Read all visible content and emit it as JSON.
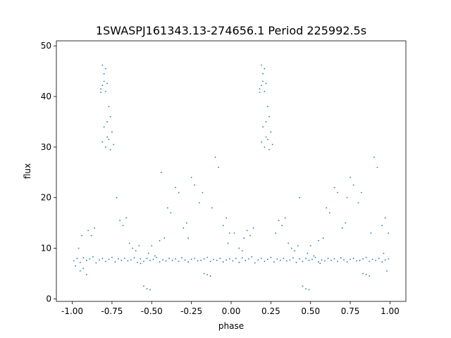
{
  "chart_data": {
    "type": "scatter",
    "title": "1SWASPJ161343.13-274656.1 Period 225992.5s",
    "xlabel": "phase",
    "ylabel": "flux",
    "xlim": [
      -1.1,
      1.1
    ],
    "ylim": [
      -0.5,
      51
    ],
    "xticks": [
      "-1.00",
      "-0.75",
      "-0.50",
      "-0.25",
      "0.00",
      "0.25",
      "0.50",
      "0.75",
      "1.00"
    ],
    "yticks": [
      "0",
      "10",
      "20",
      "30",
      "40",
      "50"
    ],
    "grid": false,
    "legend": "none",
    "marker_color": "#1f77b4",
    "series": [
      {
        "x": [
          -0.99,
          -0.97,
          -0.95,
          -0.93,
          -0.91,
          -0.89,
          -0.87,
          -0.85,
          -0.83,
          -0.81,
          -0.79,
          -0.77,
          -0.75,
          -0.73,
          -0.71,
          -0.69,
          -0.67,
          -0.65,
          -0.63,
          -0.61,
          -0.59,
          -0.57,
          -0.55,
          -0.53,
          -0.51,
          -0.49,
          -0.47,
          -0.45,
          -0.43,
          -0.41,
          -0.39,
          -0.37,
          -0.35,
          -0.33,
          -0.31,
          -0.29,
          -0.27,
          -0.25,
          -0.23,
          -0.21,
          -0.19,
          -0.17,
          -0.15,
          -0.13,
          -0.11,
          -0.09,
          -0.07,
          -0.05,
          -0.03,
          -0.01,
          0.01,
          0.03,
          0.05,
          0.07,
          0.09,
          0.11,
          0.13,
          0.15,
          0.17,
          0.19,
          0.21,
          0.23,
          0.25,
          0.27,
          0.29,
          0.31,
          0.33,
          0.35,
          0.37,
          0.39,
          0.41,
          0.43,
          0.45,
          0.47,
          0.49,
          0.51,
          0.53,
          0.55,
          0.57,
          0.59,
          0.61,
          0.63,
          0.65,
          0.67,
          0.69,
          0.71,
          0.73,
          0.75,
          0.77,
          0.79,
          0.81,
          0.83,
          0.85,
          0.87,
          0.89,
          0.91,
          0.93,
          0.95,
          0.97,
          0.99,
          -0.82,
          -0.81,
          -0.8,
          -0.79,
          -0.78,
          -0.8,
          -0.82,
          -0.79,
          -0.81,
          -0.77,
          -0.76,
          -0.75,
          -0.74,
          -0.77,
          -0.76,
          -0.78,
          -0.8,
          -0.79,
          -0.81,
          -0.78,
          0.18,
          0.19,
          0.2,
          0.21,
          0.22,
          0.2,
          0.18,
          0.21,
          0.19,
          0.23,
          0.24,
          0.25,
          0.26,
          0.23,
          0.24,
          0.22,
          0.2,
          0.21,
          0.19,
          0.22,
          -0.55,
          -0.53,
          -0.51,
          -0.17,
          -0.15,
          -0.13,
          0.45,
          0.47,
          0.49,
          0.83,
          0.85,
          0.87,
          -0.52,
          -0.5,
          -0.48,
          -0.45,
          -0.42,
          -0.6,
          -0.58,
          -0.3,
          -0.28,
          -0.05,
          -0.03,
          -0.01,
          0.48,
          0.5,
          0.52,
          0.55,
          0.58,
          0.4,
          0.42,
          0.7,
          0.72,
          0.95,
          0.97,
          0.99,
          -0.9,
          -0.88,
          -0.86,
          -0.7,
          -0.68,
          -0.66,
          -0.4,
          -0.38,
          -0.2,
          -0.18,
          -0.1,
          -0.08,
          0.1,
          0.12,
          0.14,
          0.3,
          0.32,
          0.34,
          0.6,
          0.62,
          0.8,
          0.82,
          0.9,
          0.92,
          -0.95,
          -0.93,
          -0.91,
          -0.64,
          -0.62,
          -0.35,
          -0.33,
          -0.25,
          -0.23,
          -0.02,
          0.05,
          0.07,
          0.36,
          0.38,
          0.65,
          0.67,
          0.75,
          0.77,
          0.98,
          -0.98,
          -0.96,
          -0.94,
          -0.72,
          -0.57,
          -0.44,
          -0.27,
          -0.12,
          0.02,
          0.08,
          0.28,
          0.43,
          0.56,
          0.73,
          0.88,
          0.96
        ],
        "y": [
          7.5,
          8,
          7.2,
          8.1,
          7.6,
          7.9,
          8.3,
          7.1,
          7.7,
          8.0,
          7.4,
          7.8,
          8.2,
          7.3,
          7.9,
          7.6,
          8.0,
          7.5,
          7.7,
          8.1,
          7.2,
          7.9,
          7.4,
          8.0,
          7.6,
          7.8,
          8.2,
          7.3,
          7.7,
          7.5,
          8.0,
          7.6,
          7.9,
          7.4,
          8.1,
          7.7,
          7.3,
          7.8,
          8.0,
          7.5,
          7.6,
          7.9,
          8.2,
          7.4,
          7.8,
          7.6,
          8.0,
          7.3,
          7.7,
          7.9,
          7.5,
          8.0,
          7.2,
          8.1,
          7.6,
          7.9,
          8.3,
          7.1,
          7.7,
          8.0,
          7.4,
          7.8,
          8.2,
          7.3,
          7.9,
          7.6,
          8.0,
          7.5,
          7.7,
          8.1,
          7.2,
          7.9,
          7.4,
          8.0,
          7.6,
          7.8,
          8.2,
          7.3,
          7.7,
          7.5,
          8.0,
          7.6,
          7.9,
          7.4,
          8.1,
          7.7,
          7.3,
          7.8,
          8.0,
          7.5,
          7.6,
          7.9,
          8.2,
          7.4,
          7.8,
          7.6,
          8.0,
          7.3,
          7.7,
          7.9,
          41.5,
          42.2,
          43.0,
          41.0,
          42.6,
          44.5,
          40.8,
          45.5,
          46.2,
          38.0,
          36.0,
          33.0,
          30.5,
          31.5,
          29.5,
          32.0,
          34.0,
          30.0,
          31.0,
          35.0,
          41.5,
          42.2,
          43.0,
          41.0,
          42.6,
          44.5,
          40.8,
          45.5,
          46.2,
          38.0,
          36.0,
          33.0,
          30.5,
          31.5,
          29.5,
          32.0,
          34.0,
          30.0,
          31.0,
          35.0,
          2.5,
          2.0,
          1.8,
          5.0,
          4.8,
          4.5,
          2.5,
          2.0,
          1.8,
          5.0,
          4.8,
          4.5,
          9.0,
          10.5,
          8.5,
          11.5,
          12.0,
          9.5,
          10.5,
          14.0,
          15.0,
          14.5,
          16.0,
          13.0,
          9.0,
          10.5,
          8.5,
          11.5,
          12.0,
          9.5,
          10.5,
          14.0,
          15.0,
          14.5,
          16.0,
          13.0,
          13.5,
          12.5,
          14.0,
          15.5,
          14.5,
          16.0,
          18.0,
          17.0,
          19.0,
          21.0,
          28.0,
          26.0,
          13.5,
          12.5,
          14.0,
          15.5,
          14.5,
          16.0,
          18.0,
          17.0,
          19.0,
          21.0,
          28.0,
          26.0,
          5.5,
          6.0,
          4.8,
          11.0,
          10.0,
          22.0,
          21.0,
          24.0,
          22.5,
          11.0,
          10.0,
          9.5,
          11.0,
          10.0,
          22.0,
          21.0,
          24.0,
          22.5,
          5.5,
          6.5,
          10.0,
          12.5,
          20.0,
          7.0,
          25.0,
          12.0,
          18.0,
          13.0,
          12.0,
          13.0,
          20.0,
          7.0,
          20.0,
          13.0,
          9.0
        ]
      }
    ]
  }
}
